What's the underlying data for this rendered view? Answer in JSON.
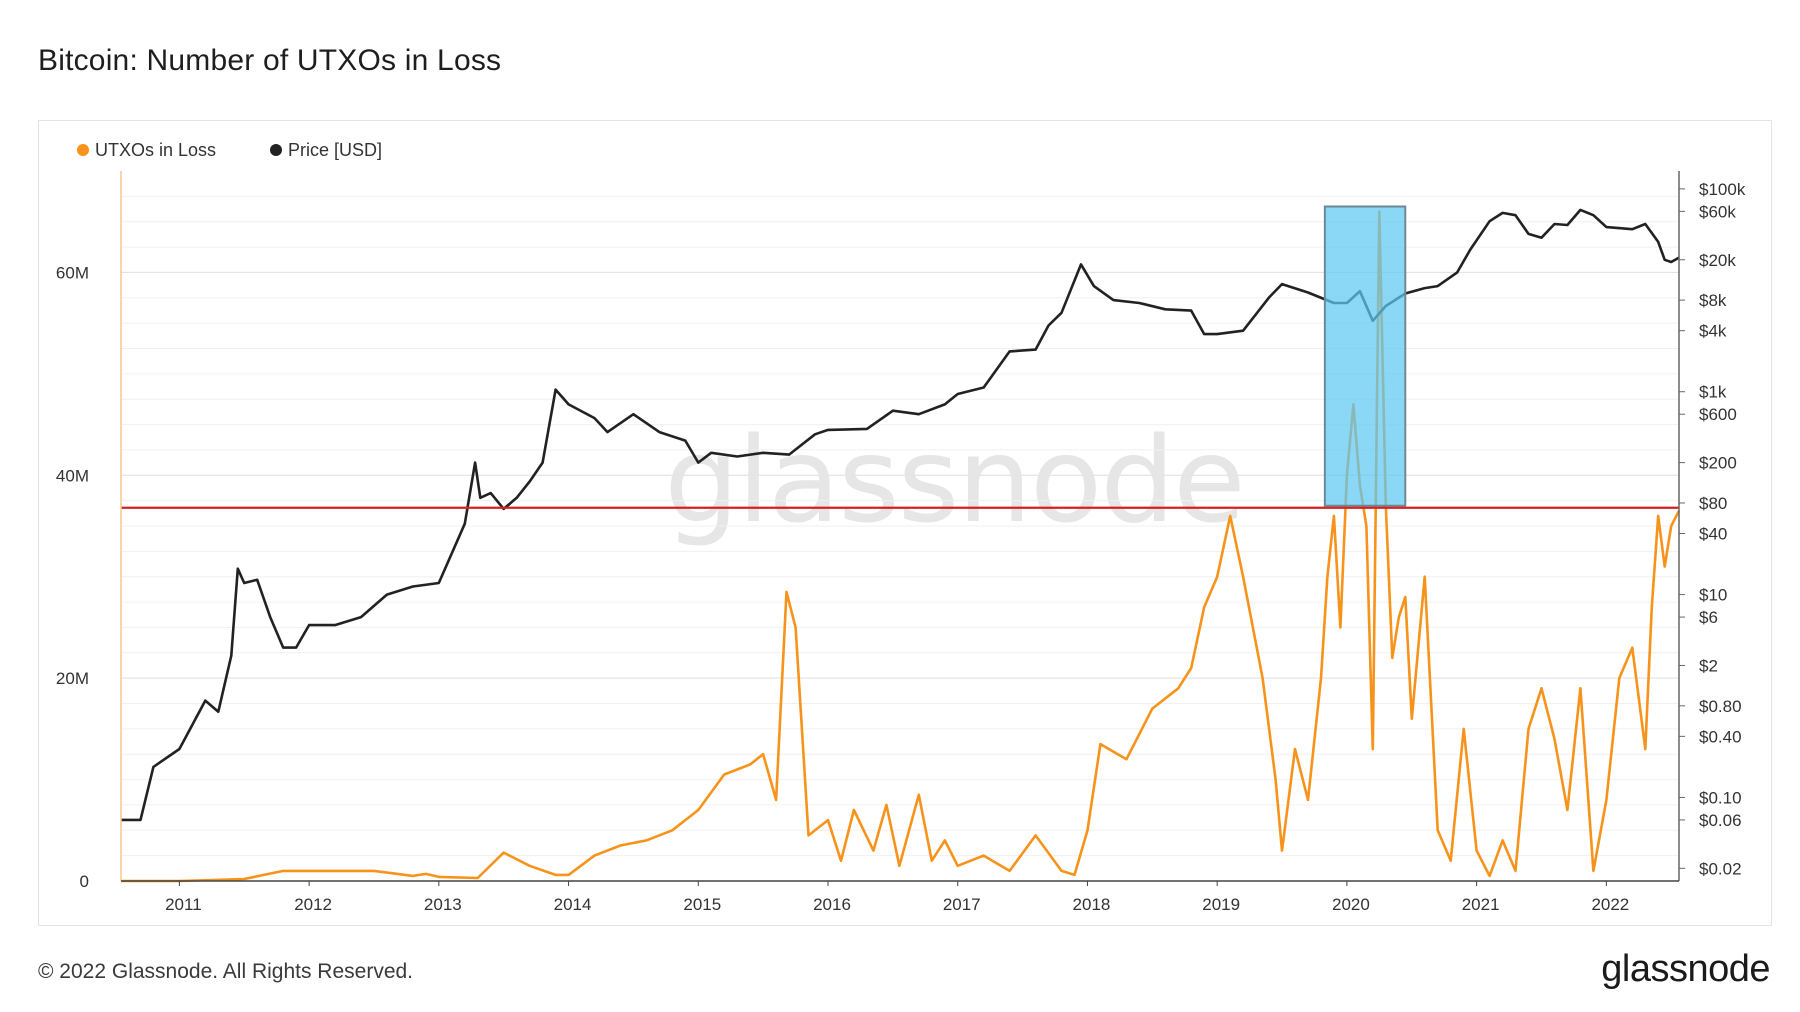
{
  "title": "Bitcoin: Number of UTXOs in Loss",
  "footer": {
    "copyright": "© 2022 Glassnode. All Rights Reserved.",
    "logo_text": "glassnode"
  },
  "watermark": "glassnode",
  "chart_data": {
    "type": "line",
    "legend": [
      {
        "name": "UTXOs in Loss",
        "color": "#f7931a"
      },
      {
        "name": "Price [USD]",
        "color": "#222222"
      }
    ],
    "x_tick_labels": [
      "2011",
      "2012",
      "2013",
      "2014",
      "2015",
      "2016",
      "2017",
      "2018",
      "2019",
      "2020",
      "2021",
      "2022"
    ],
    "x_range": [
      2010.55,
      2022.56
    ],
    "y_left": {
      "range": [
        0,
        70000000
      ],
      "tick_values": [
        0,
        20000000,
        40000000,
        60000000
      ],
      "tick_labels": [
        "0",
        "20M",
        "40M",
        "60M"
      ]
    },
    "y_right": {
      "scale": "log",
      "range": [
        0.015,
        150000
      ],
      "tick_values": [
        100000,
        60000,
        20000,
        8000,
        4000,
        1000,
        600,
        200,
        80,
        40,
        10,
        6,
        2,
        0.8,
        0.4,
        0.1,
        0.06,
        0.02
      ],
      "tick_labels": [
        "$100k",
        "$60k",
        "$20k",
        "$8k",
        "$4k",
        "$1k",
        "$600",
        "$200",
        "$80",
        "$40",
        "$10",
        "$6",
        "$2",
        "$0.80",
        "$0.40",
        "$0.10",
        "$0.06",
        "$0.02"
      ]
    },
    "threshold_line": {
      "value": 36800000,
      "color": "#d62020"
    },
    "highlight": {
      "x_range": [
        2019.83,
        2020.45
      ],
      "y_range": [
        37000000,
        66500000
      ],
      "color": "#5ec8f2"
    },
    "series": [
      {
        "name": "UTXOs in Loss",
        "axis": "left",
        "color": "#f7931a",
        "points": [
          [
            2010.55,
            0
          ],
          [
            2011.0,
            0
          ],
          [
            2011.5,
            200000
          ],
          [
            2011.8,
            1000000
          ],
          [
            2012.0,
            1000000
          ],
          [
            2012.5,
            1000000
          ],
          [
            2012.8,
            500000
          ],
          [
            2012.9,
            700000
          ],
          [
            2013.0,
            400000
          ],
          [
            2013.3,
            300000
          ],
          [
            2013.5,
            2800000
          ],
          [
            2013.7,
            1500000
          ],
          [
            2013.9,
            600000
          ],
          [
            2014.0,
            600000
          ],
          [
            2014.2,
            2500000
          ],
          [
            2014.4,
            3500000
          ],
          [
            2014.6,
            4000000
          ],
          [
            2014.8,
            5000000
          ],
          [
            2015.0,
            7000000
          ],
          [
            2015.2,
            10500000
          ],
          [
            2015.4,
            11500000
          ],
          [
            2015.5,
            12500000
          ],
          [
            2015.6,
            8000000
          ],
          [
            2015.68,
            28500000
          ],
          [
            2015.75,
            25000000
          ],
          [
            2015.85,
            4500000
          ],
          [
            2016.0,
            6000000
          ],
          [
            2016.1,
            2000000
          ],
          [
            2016.2,
            7000000
          ],
          [
            2016.35,
            3000000
          ],
          [
            2016.45,
            7500000
          ],
          [
            2016.55,
            1500000
          ],
          [
            2016.7,
            8500000
          ],
          [
            2016.8,
            2000000
          ],
          [
            2016.9,
            4000000
          ],
          [
            2017.0,
            1500000
          ],
          [
            2017.2,
            2500000
          ],
          [
            2017.4,
            1000000
          ],
          [
            2017.6,
            4500000
          ],
          [
            2017.8,
            1000000
          ],
          [
            2017.9,
            600000
          ],
          [
            2018.0,
            5000000
          ],
          [
            2018.1,
            13500000
          ],
          [
            2018.3,
            12000000
          ],
          [
            2018.5,
            17000000
          ],
          [
            2018.7,
            19000000
          ],
          [
            2018.8,
            21000000
          ],
          [
            2018.9,
            27000000
          ],
          [
            2019.0,
            30000000
          ],
          [
            2019.1,
            36000000
          ],
          [
            2019.2,
            30000000
          ],
          [
            2019.35,
            20000000
          ],
          [
            2019.45,
            10000000
          ],
          [
            2019.5,
            3000000
          ],
          [
            2019.6,
            13000000
          ],
          [
            2019.7,
            8000000
          ],
          [
            2019.8,
            20000000
          ],
          [
            2019.85,
            30000000
          ],
          [
            2019.9,
            36000000
          ],
          [
            2019.95,
            25000000
          ],
          [
            2020.0,
            40000000
          ],
          [
            2020.05,
            47000000
          ],
          [
            2020.1,
            39000000
          ],
          [
            2020.15,
            35000000
          ],
          [
            2020.2,
            13000000
          ],
          [
            2020.25,
            66000000
          ],
          [
            2020.3,
            37000000
          ],
          [
            2020.35,
            22000000
          ],
          [
            2020.4,
            26000000
          ],
          [
            2020.45,
            28000000
          ],
          [
            2020.5,
            16000000
          ],
          [
            2020.6,
            30000000
          ],
          [
            2020.7,
            5000000
          ],
          [
            2020.8,
            2000000
          ],
          [
            2020.9,
            15000000
          ],
          [
            2021.0,
            3000000
          ],
          [
            2021.1,
            500000
          ],
          [
            2021.2,
            4000000
          ],
          [
            2021.3,
            1000000
          ],
          [
            2021.4,
            15000000
          ],
          [
            2021.5,
            19000000
          ],
          [
            2021.6,
            14000000
          ],
          [
            2021.7,
            7000000
          ],
          [
            2021.8,
            19000000
          ],
          [
            2021.9,
            1000000
          ],
          [
            2022.0,
            8000000
          ],
          [
            2022.1,
            20000000
          ],
          [
            2022.2,
            23000000
          ],
          [
            2022.3,
            13000000
          ],
          [
            2022.35,
            27000000
          ],
          [
            2022.4,
            36000000
          ],
          [
            2022.45,
            31000000
          ],
          [
            2022.5,
            35000000
          ],
          [
            2022.56,
            36500000
          ]
        ]
      },
      {
        "name": "Price [USD]",
        "axis": "right",
        "color": "#222222",
        "points": [
          [
            2010.55,
            0.06
          ],
          [
            2010.7,
            0.06
          ],
          [
            2010.8,
            0.2
          ],
          [
            2011.0,
            0.3
          ],
          [
            2011.2,
            0.9
          ],
          [
            2011.3,
            0.7
          ],
          [
            2011.4,
            2.5
          ],
          [
            2011.45,
            18
          ],
          [
            2011.5,
            13
          ],
          [
            2011.6,
            14
          ],
          [
            2011.7,
            6
          ],
          [
            2011.8,
            3
          ],
          [
            2011.9,
            3
          ],
          [
            2012.0,
            5
          ],
          [
            2012.2,
            5
          ],
          [
            2012.4,
            6
          ],
          [
            2012.6,
            10
          ],
          [
            2012.8,
            12
          ],
          [
            2013.0,
            13
          ],
          [
            2013.2,
            50
          ],
          [
            2013.28,
            200
          ],
          [
            2013.32,
            90
          ],
          [
            2013.4,
            100
          ],
          [
            2013.5,
            70
          ],
          [
            2013.6,
            90
          ],
          [
            2013.7,
            130
          ],
          [
            2013.8,
            200
          ],
          [
            2013.9,
            1050
          ],
          [
            2014.0,
            750
          ],
          [
            2014.2,
            550
          ],
          [
            2014.3,
            400
          ],
          [
            2014.5,
            600
          ],
          [
            2014.7,
            400
          ],
          [
            2014.9,
            330
          ],
          [
            2015.0,
            200
          ],
          [
            2015.1,
            250
          ],
          [
            2015.3,
            230
          ],
          [
            2015.5,
            250
          ],
          [
            2015.7,
            240
          ],
          [
            2015.9,
            380
          ],
          [
            2016.0,
            420
          ],
          [
            2016.3,
            430
          ],
          [
            2016.5,
            650
          ],
          [
            2016.7,
            600
          ],
          [
            2016.9,
            750
          ],
          [
            2017.0,
            950
          ],
          [
            2017.2,
            1100
          ],
          [
            2017.4,
            2500
          ],
          [
            2017.6,
            2600
          ],
          [
            2017.7,
            4500
          ],
          [
            2017.8,
            6000
          ],
          [
            2017.95,
            18000
          ],
          [
            2018.05,
            11000
          ],
          [
            2018.2,
            8000
          ],
          [
            2018.4,
            7500
          ],
          [
            2018.6,
            6500
          ],
          [
            2018.8,
            6300
          ],
          [
            2018.9,
            3700
          ],
          [
            2019.0,
            3700
          ],
          [
            2019.2,
            4000
          ],
          [
            2019.4,
            8500
          ],
          [
            2019.5,
            11500
          ],
          [
            2019.7,
            9500
          ],
          [
            2019.9,
            7500
          ],
          [
            2020.0,
            7500
          ],
          [
            2020.1,
            9800
          ],
          [
            2020.2,
            5000
          ],
          [
            2020.3,
            7000
          ],
          [
            2020.45,
            9300
          ],
          [
            2020.6,
            10500
          ],
          [
            2020.7,
            11000
          ],
          [
            2020.85,
            15000
          ],
          [
            2020.95,
            25000
          ],
          [
            2021.1,
            48000
          ],
          [
            2021.2,
            58000
          ],
          [
            2021.3,
            55000
          ],
          [
            2021.4,
            36000
          ],
          [
            2021.5,
            33000
          ],
          [
            2021.6,
            45000
          ],
          [
            2021.7,
            44000
          ],
          [
            2021.8,
            62000
          ],
          [
            2021.9,
            55000
          ],
          [
            2022.0,
            42000
          ],
          [
            2022.2,
            40000
          ],
          [
            2022.3,
            45000
          ],
          [
            2022.4,
            30000
          ],
          [
            2022.45,
            20000
          ],
          [
            2022.5,
            19000
          ],
          [
            2022.56,
            21000
          ]
        ]
      }
    ]
  }
}
